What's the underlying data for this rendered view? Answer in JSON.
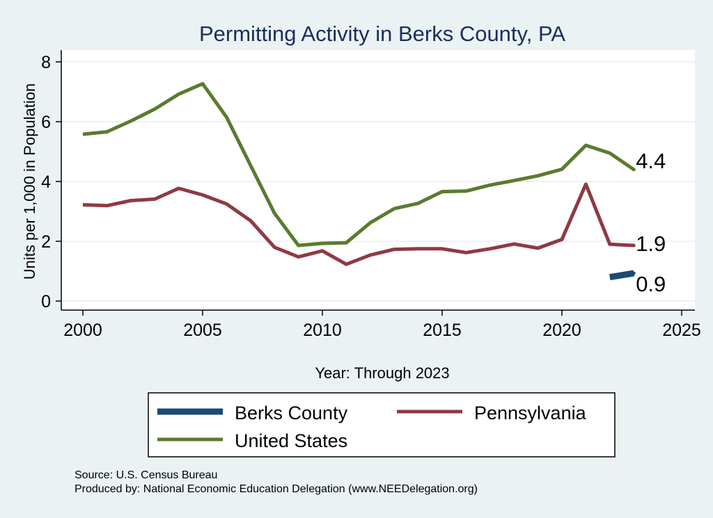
{
  "chart_data": {
    "type": "line",
    "title": "Permitting Activity in Berks County, PA",
    "xlabel": "Year: Through 2023",
    "ylabel": "Units per 1,000 in Population",
    "xlim": [
      2000,
      2025
    ],
    "ylim": [
      0,
      8
    ],
    "x_ticks": [
      2000,
      2005,
      2010,
      2015,
      2020,
      2025
    ],
    "y_ticks": [
      0,
      2,
      4,
      6,
      8
    ],
    "grid": true,
    "legend_position": "bottom",
    "series": [
      {
        "name": "Berks County",
        "color": "#1b4a72",
        "x": [
          2022,
          2023
        ],
        "values": [
          0.8,
          0.93
        ],
        "end_label": "0.9"
      },
      {
        "name": "Pennsylvania",
        "color": "#8f3a43",
        "x": [
          2000,
          2001,
          2002,
          2003,
          2004,
          2005,
          2006,
          2007,
          2008,
          2009,
          2010,
          2011,
          2012,
          2013,
          2014,
          2015,
          2016,
          2017,
          2018,
          2019,
          2020,
          2021,
          2022,
          2023
        ],
        "values": [
          3.22,
          3.19,
          3.36,
          3.41,
          3.77,
          3.55,
          3.25,
          2.69,
          1.8,
          1.48,
          1.68,
          1.23,
          1.54,
          1.73,
          1.75,
          1.75,
          1.62,
          1.75,
          1.91,
          1.77,
          2.06,
          3.91,
          1.9,
          1.86
        ],
        "end_label": "1.9"
      },
      {
        "name": "United States",
        "color": "#5a7b2e",
        "x": [
          2000,
          2001,
          2002,
          2003,
          2004,
          2005,
          2006,
          2007,
          2008,
          2009,
          2010,
          2011,
          2012,
          2013,
          2014,
          2015,
          2016,
          2017,
          2018,
          2019,
          2020,
          2021,
          2022,
          2023
        ],
        "values": [
          5.58,
          5.66,
          6.02,
          6.42,
          6.92,
          7.27,
          6.15,
          4.54,
          2.94,
          1.86,
          1.93,
          1.95,
          2.62,
          3.09,
          3.27,
          3.66,
          3.68,
          3.88,
          4.03,
          4.19,
          4.41,
          5.21,
          4.95,
          4.4
        ],
        "end_label": "4.4"
      }
    ],
    "notes": [
      "Source: U.S. Census Bureau",
      "Produced by: National Economic Education Delegation (www.NEEDelegation.org)"
    ]
  }
}
